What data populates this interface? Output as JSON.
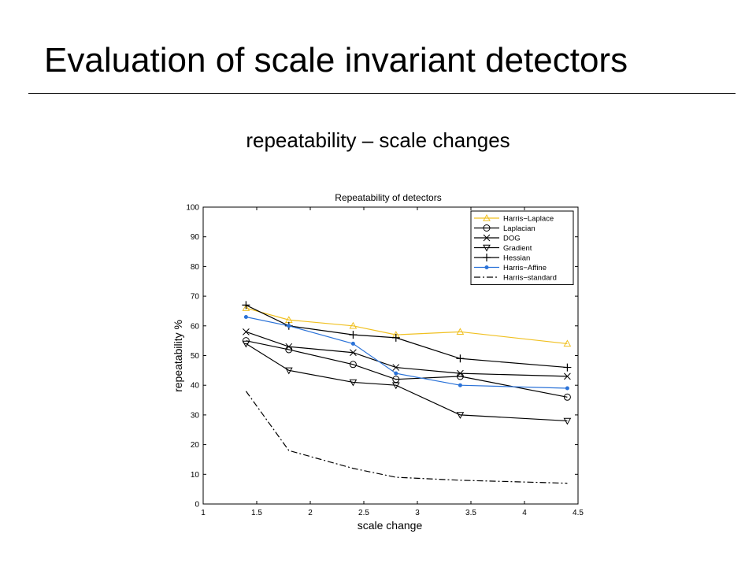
{
  "slide": {
    "title": "Evaluation of scale invariant detectors",
    "subtitle": "repeatability – scale changes"
  },
  "chart_data": {
    "type": "line",
    "title": "Repeatability of detectors",
    "xlabel": "scale change",
    "ylabel": "repeatability %",
    "xlim": [
      1,
      4.5
    ],
    "ylim": [
      0,
      100
    ],
    "xticks": [
      1,
      1.5,
      2,
      2.5,
      3,
      3.5,
      4,
      4.5
    ],
    "xtick_labels": [
      "1",
      "1.5",
      "2",
      "2.5",
      "3",
      "3.5",
      "4",
      "4.5"
    ],
    "yticks": [
      0,
      10,
      20,
      30,
      40,
      50,
      60,
      70,
      80,
      90,
      100
    ],
    "ytick_labels": [
      "0",
      "10",
      "20",
      "30",
      "40",
      "50",
      "60",
      "70",
      "80",
      "90",
      "100"
    ],
    "grid": true,
    "legend_position": "top-right",
    "series": [
      {
        "name": "Harris−Laplace",
        "color": "#f0c020",
        "marker": "triangle-up",
        "dash": "solid",
        "x": [
          1.4,
          1.8,
          2.4,
          2.8,
          3.4,
          4.4
        ],
        "y": [
          66,
          62,
          60,
          57,
          58,
          54
        ]
      },
      {
        "name": "Laplacian",
        "color": "#000000",
        "marker": "circle",
        "dash": "solid",
        "x": [
          1.4,
          1.8,
          2.4,
          2.8,
          3.4,
          4.4
        ],
        "y": [
          55,
          52,
          47,
          42,
          43,
          36
        ]
      },
      {
        "name": "DOG",
        "color": "#000000",
        "marker": "x",
        "dash": "solid",
        "x": [
          1.4,
          1.8,
          2.4,
          2.8,
          3.4,
          4.4
        ],
        "y": [
          58,
          53,
          51,
          46,
          44,
          43
        ]
      },
      {
        "name": "Gradient",
        "color": "#000000",
        "marker": "triangle-down",
        "dash": "solid",
        "x": [
          1.4,
          1.8,
          2.4,
          2.8,
          3.4,
          4.4
        ],
        "y": [
          54,
          45,
          41,
          40,
          30,
          28
        ]
      },
      {
        "name": "Hessian",
        "color": "#000000",
        "marker": "plus",
        "dash": "solid",
        "x": [
          1.4,
          1.8,
          2.4,
          2.8,
          3.4,
          4.4
        ],
        "y": [
          67,
          60,
          57,
          56,
          49,
          46
        ]
      },
      {
        "name": "Harris−Affine",
        "color": "#2a72d8",
        "marker": "dot",
        "dash": "solid",
        "x": [
          1.4,
          1.8,
          2.4,
          2.8,
          3.4,
          4.4
        ],
        "y": [
          63,
          60,
          54,
          44,
          40,
          39
        ]
      },
      {
        "name": "Harris−standard",
        "color": "#000000",
        "marker": "none",
        "dash": "dashdot",
        "x": [
          1.4,
          1.8,
          2.4,
          2.8,
          3.4,
          4.4
        ],
        "y": [
          38,
          18,
          12,
          9,
          8,
          7
        ]
      }
    ]
  }
}
